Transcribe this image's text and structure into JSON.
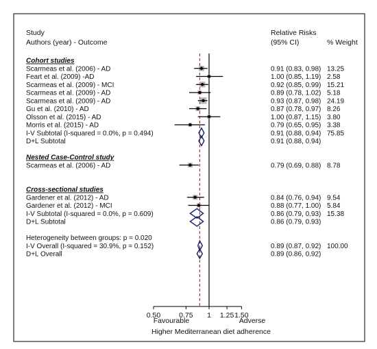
{
  "header": {
    "study": "Study",
    "authors": "Authors (year) - Outcome",
    "rr": "Relative Risks",
    "ci": "(95%  CI)",
    "weight": "% Weight"
  },
  "footer": {
    "favourable": "Favourable",
    "adverse": "Adverse",
    "axis_title": "Higher Mediterranean diet adherence"
  },
  "colors": {
    "frame": "#000000",
    "reference_line": "#9b2b3a",
    "diamond": "#1f2a6b",
    "box": "#b8b8b8",
    "point": "#000000"
  },
  "chart_data": {
    "type": "forest",
    "x_scale": "log",
    "null_value": 1,
    "xticks": [
      0.5,
      0.75,
      1,
      1.25,
      1.5
    ],
    "xtick_labels": [
      "0.50",
      "0.75",
      "1",
      "1.25",
      "1.50"
    ],
    "overall_reference": 0.89,
    "rows": [
      {
        "kind": "group",
        "label": "Cohort studies"
      },
      {
        "kind": "study",
        "label": "Scarmeas et al. (2006) - AD",
        "rr": 0.91,
        "lo": 0.83,
        "hi": 0.98,
        "rr_text": "0.91  (0.83, 0.98)",
        "weight": "13.25",
        "w": 13.25
      },
      {
        "kind": "study",
        "label": "Feart et al. (2009) -AD",
        "rr": 1.0,
        "lo": 0.85,
        "hi": 1.19,
        "rr_text": "1.00  (0.85, 1.19)",
        "weight": "2.58",
        "w": 2.58
      },
      {
        "kind": "study",
        "label": "Scarmeas et al. (2009) - MCI",
        "rr": 0.92,
        "lo": 0.85,
        "hi": 0.99,
        "rr_text": "0.92  (0.85, 0.99)",
        "weight": "15.21",
        "w": 15.21
      },
      {
        "kind": "study",
        "label": "Scarmeas et al. (2009) - AD",
        "rr": 0.89,
        "lo": 0.78,
        "hi": 1.02,
        "rr_text": "0.89  (0.78, 1.02)",
        "weight": "5.18",
        "w": 5.18
      },
      {
        "kind": "study",
        "label": "Scarmeas et al. (2009) - AD",
        "rr": 0.93,
        "lo": 0.87,
        "hi": 0.98,
        "rr_text": "0.93  (0.87, 0.98)",
        "weight": "24.19",
        "w": 24.19
      },
      {
        "kind": "study",
        "label": "Gu et al. (2010) - AD",
        "rr": 0.87,
        "lo": 0.78,
        "hi": 0.97,
        "rr_text": "0.87  (0.78, 0.97)",
        "weight": "8.26",
        "w": 8.26
      },
      {
        "kind": "study",
        "label": "Olsson et al. (2015) - AD",
        "rr": 1.0,
        "lo": 0.87,
        "hi": 1.15,
        "rr_text": "1.00  (0.87, 1.15)",
        "weight": "3.80",
        "w": 3.8
      },
      {
        "kind": "study",
        "label": "Morris et al. (2015) - AD",
        "rr": 0.79,
        "lo": 0.65,
        "hi": 0.95,
        "rr_text": "0.79  (0.65, 0.95)",
        "weight": "3.38",
        "w": 3.38
      },
      {
        "kind": "subtotal",
        "label": "I-V Subtotal  (I-squared = 0.0%, p = 0.494)",
        "rr": 0.91,
        "lo": 0.88,
        "hi": 0.94,
        "rr_text": "0.91  (0.88, 0.94)",
        "weight": "75.85"
      },
      {
        "kind": "subtotal",
        "label": "D+L Subtotal",
        "rr": 0.91,
        "lo": 0.88,
        "hi": 0.94,
        "rr_text": "0.91  (0.88, 0.94)",
        "weight": ""
      },
      {
        "kind": "gap"
      },
      {
        "kind": "group",
        "label": "Nested Case-Control study"
      },
      {
        "kind": "study",
        "label": "Scarmeas et al. (2006) - AD",
        "rr": 0.79,
        "lo": 0.69,
        "hi": 0.88,
        "rr_text": "0.79  (0.69, 0.88)",
        "weight": "8.78",
        "w": 8.78
      },
      {
        "kind": "gap"
      },
      {
        "kind": "gap"
      },
      {
        "kind": "group",
        "label": "Cross-sectional studies"
      },
      {
        "kind": "study",
        "label": "Gardener et al. (2012) - AD",
        "rr": 0.84,
        "lo": 0.76,
        "hi": 0.94,
        "rr_text": "0.84  (0.76, 0.94)",
        "weight": "9.54",
        "w": 9.54
      },
      {
        "kind": "study",
        "label": "Gardener et al. (2012) - MCI",
        "rr": 0.88,
        "lo": 0.77,
        "hi": 1.0,
        "rr_text": "0.88  (0.77, 1.00)",
        "weight": "5.84",
        "w": 5.84
      },
      {
        "kind": "subtotal",
        "label": "I-V Subtotal  (I-squared = 0.0%, p = 0.609)",
        "rr": 0.86,
        "lo": 0.79,
        "hi": 0.93,
        "rr_text": "0.86  (0.79, 0.93)",
        "weight": "15.38"
      },
      {
        "kind": "subtotal",
        "label": "D+L Subtotal",
        "rr": 0.86,
        "lo": 0.79,
        "hi": 0.93,
        "rr_text": "0.86  (0.79, 0.93)",
        "weight": ""
      },
      {
        "kind": "gap"
      },
      {
        "kind": "text",
        "label": "Heterogeneity between groups: p = 0.020"
      },
      {
        "kind": "subtotal",
        "label": "I-V Overall  (I-squared = 30.9%, p = 0.152)",
        "rr": 0.89,
        "lo": 0.87,
        "hi": 0.92,
        "rr_text": "0.89  (0.87, 0.92)",
        "weight": "100.00"
      },
      {
        "kind": "subtotal",
        "label": "D+L Overall",
        "rr": 0.89,
        "lo": 0.86,
        "hi": 0.92,
        "rr_text": "0.89  (0.86, 0.92)",
        "weight": ""
      }
    ]
  }
}
